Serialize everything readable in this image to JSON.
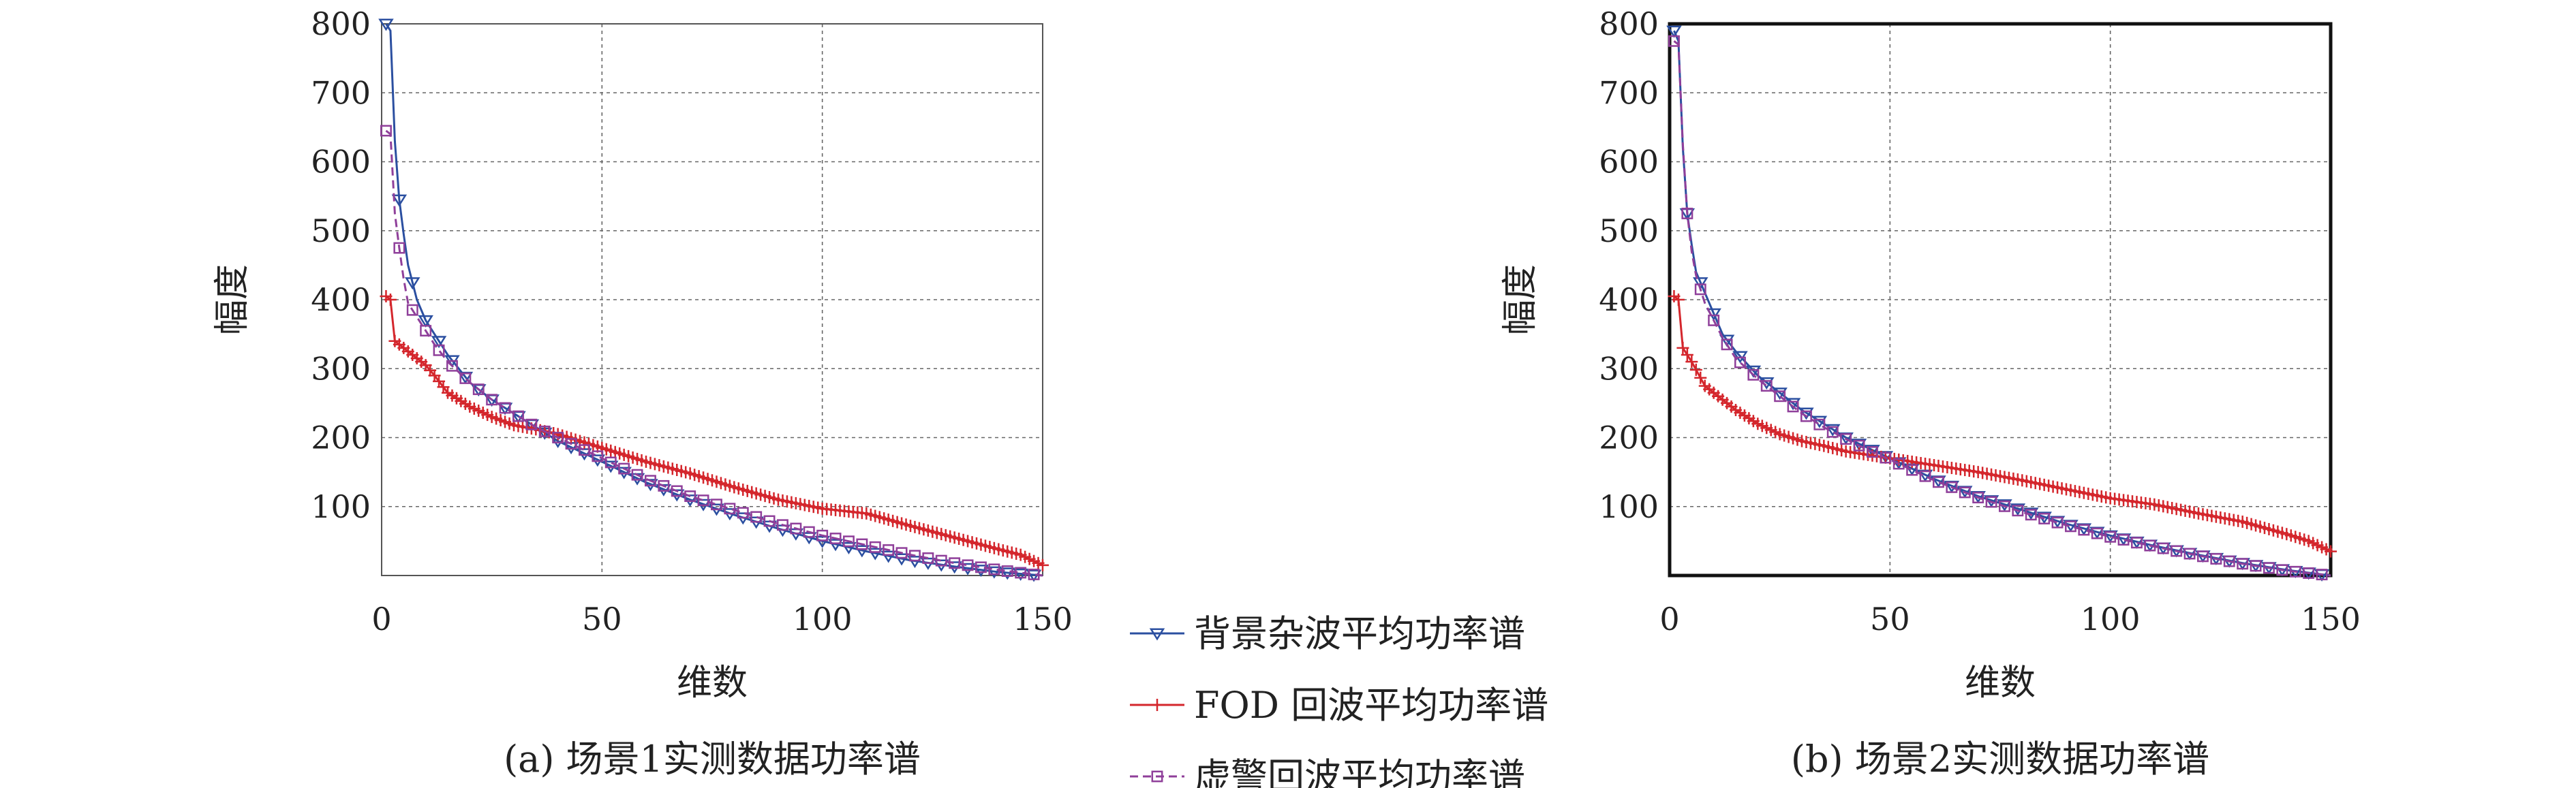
{
  "legend": [
    {
      "label": "背景杂波平均功率谱",
      "color": "#2b4fa0",
      "marker": "triangle-down-icon"
    },
    {
      "label": "FOD 回波平均功率谱",
      "color": "#d4262c",
      "marker": "plus-icon"
    },
    {
      "label": "虚警回波平均功率谱",
      "color": "#8f3f9a",
      "marker": "square-icon"
    }
  ],
  "chart_data": [
    {
      "type": "line",
      "caption": "(a) 场景1实测数据功率谱",
      "xlabel": "维数",
      "ylabel": "幅度",
      "xlim": [
        0,
        150
      ],
      "ylim": [
        0,
        800
      ],
      "xticks": [
        "0",
        "50",
        "100",
        "150"
      ],
      "yticks": [
        "100",
        "200",
        "300",
        "400",
        "500",
        "600",
        "700",
        "800"
      ],
      "grid": true,
      "series": [
        {
          "name": "背景杂波平均功率谱",
          "x": [
            1,
            2,
            3,
            4,
            5,
            6,
            8,
            10,
            12,
            15,
            20,
            25,
            30,
            35,
            40,
            45,
            50,
            60,
            70,
            80,
            90,
            100,
            110,
            120,
            130,
            140,
            150
          ],
          "y": [
            800,
            790,
            630,
            545,
            495,
            450,
            400,
            370,
            350,
            320,
            280,
            255,
            235,
            215,
            195,
            180,
            165,
            135,
            110,
            88,
            68,
            50,
            35,
            22,
            13,
            5,
            0
          ]
        },
        {
          "name": "FOD 回波平均功率谱",
          "x": [
            1,
            2,
            3,
            5,
            8,
            10,
            12,
            15,
            20,
            25,
            30,
            35,
            40,
            45,
            50,
            60,
            70,
            80,
            90,
            100,
            110,
            120,
            130,
            140,
            145,
            150
          ],
          "y": [
            405,
            400,
            340,
            330,
            315,
            305,
            290,
            265,
            245,
            230,
            218,
            212,
            205,
            195,
            185,
            165,
            148,
            128,
            110,
            97,
            90,
            72,
            55,
            38,
            30,
            15
          ]
        },
        {
          "name": "虚警回波平均功率谱",
          "x": [
            1,
            2,
            3,
            4,
            5,
            6,
            8,
            10,
            12,
            15,
            20,
            25,
            30,
            35,
            40,
            45,
            50,
            60,
            70,
            80,
            90,
            100,
            110,
            120,
            130,
            140,
            150
          ],
          "y": [
            645,
            640,
            525,
            475,
            430,
            395,
            375,
            355,
            335,
            310,
            280,
            255,
            235,
            215,
            200,
            185,
            170,
            140,
            115,
            95,
            75,
            58,
            44,
            30,
            18,
            8,
            0
          ]
        }
      ]
    },
    {
      "type": "line",
      "caption": "(b) 场景2实测数据功率谱",
      "xlabel": "维数",
      "ylabel": "幅度",
      "xlim": [
        0,
        150
      ],
      "ylim": [
        0,
        800
      ],
      "xticks": [
        "0",
        "50",
        "100",
        "150"
      ],
      "yticks": [
        "100",
        "200",
        "300",
        "400",
        "500",
        "600",
        "700",
        "800"
      ],
      "grid": true,
      "series": [
        {
          "name": "背景杂波平均功率谱",
          "x": [
            1,
            2,
            3,
            4,
            5,
            6,
            8,
            10,
            12,
            15,
            20,
            25,
            30,
            35,
            40,
            45,
            50,
            60,
            70,
            80,
            90,
            100,
            110,
            120,
            130,
            140,
            150
          ],
          "y": [
            790,
            775,
            620,
            525,
            480,
            440,
            410,
            380,
            350,
            325,
            290,
            265,
            240,
            220,
            200,
            185,
            170,
            140,
            115,
            95,
            75,
            58,
            43,
            30,
            18,
            8,
            0
          ]
        },
        {
          "name": "FOD 回波平均功率谱",
          "x": [
            1,
            2,
            3,
            5,
            8,
            10,
            12,
            15,
            20,
            25,
            30,
            35,
            40,
            45,
            50,
            60,
            70,
            80,
            90,
            100,
            110,
            120,
            130,
            140,
            145,
            150
          ],
          "y": [
            405,
            400,
            330,
            310,
            275,
            265,
            255,
            240,
            220,
            205,
            195,
            188,
            180,
            175,
            170,
            160,
            150,
            138,
            125,
            112,
            103,
            90,
            78,
            60,
            50,
            35
          ]
        },
        {
          "name": "虚警回波平均功率谱",
          "x": [
            1,
            2,
            3,
            4,
            5,
            6,
            8,
            10,
            12,
            15,
            20,
            25,
            30,
            35,
            40,
            45,
            50,
            60,
            70,
            80,
            90,
            100,
            110,
            120,
            130,
            140,
            150
          ],
          "y": [
            775,
            770,
            625,
            525,
            470,
            435,
            395,
            370,
            345,
            315,
            285,
            260,
            235,
            215,
            198,
            182,
            168,
            138,
            113,
            92,
            73,
            56,
            42,
            29,
            17,
            7,
            0
          ]
        }
      ]
    }
  ]
}
